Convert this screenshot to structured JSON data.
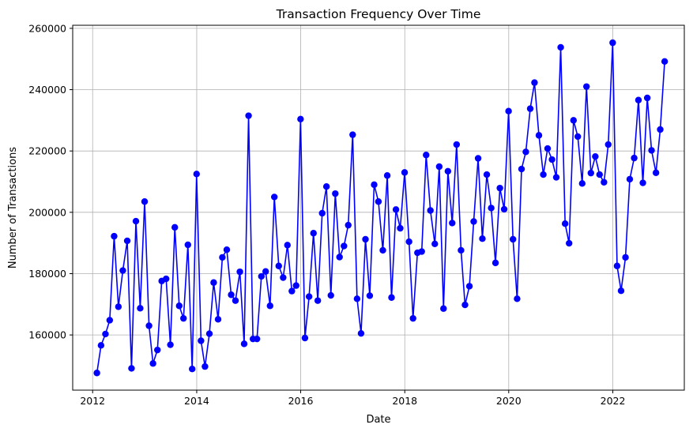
{
  "chart_data": {
    "type": "line",
    "title": "Transaction Frequency Over Time",
    "xlabel": "Date",
    "ylabel": "Number of Transactions",
    "x_ticks": [
      "2012",
      "2014",
      "2016",
      "2018",
      "2020",
      "2022"
    ],
    "y_ticks": [
      "160000",
      "180000",
      "200000",
      "220000",
      "240000",
      "260000"
    ],
    "xlim": [
      "2011-08-14",
      "2023-05-18"
    ],
    "ylim": [
      142000,
      261000
    ],
    "grid": true,
    "colors": {
      "line": "#0000ff",
      "grid": "#b0b0b0"
    },
    "marker": "circle",
    "series": [
      {
        "dates": [
          "2012-01-31",
          "2012-02-29",
          "2012-03-31",
          "2012-04-30",
          "2012-05-31",
          "2012-06-30",
          "2012-07-31",
          "2012-08-31",
          "2012-09-30",
          "2012-10-31",
          "2012-11-30",
          "2012-12-31",
          "2013-01-31",
          "2013-02-28",
          "2013-03-31",
          "2013-04-30",
          "2013-05-31",
          "2013-06-30",
          "2013-07-31",
          "2013-08-31",
          "2013-09-30",
          "2013-10-31",
          "2013-11-30",
          "2013-12-31",
          "2014-01-31",
          "2014-02-28",
          "2014-03-31",
          "2014-04-30",
          "2014-05-31",
          "2014-06-30",
          "2014-07-31",
          "2014-08-31",
          "2014-09-30",
          "2014-10-31",
          "2014-11-30",
          "2014-12-31",
          "2015-01-31",
          "2015-02-28",
          "2015-03-31",
          "2015-04-30",
          "2015-05-31",
          "2015-06-30",
          "2015-07-31",
          "2015-08-31",
          "2015-09-30",
          "2015-10-31",
          "2015-11-30",
          "2015-12-31",
          "2016-01-31",
          "2016-02-29",
          "2016-03-31",
          "2016-04-30",
          "2016-05-31",
          "2016-06-30",
          "2016-07-31",
          "2016-08-31",
          "2016-09-30",
          "2016-10-31",
          "2016-11-30",
          "2016-12-31",
          "2017-01-31",
          "2017-02-28",
          "2017-03-31",
          "2017-04-30",
          "2017-05-31",
          "2017-06-30",
          "2017-07-31",
          "2017-08-31",
          "2017-09-30",
          "2017-10-31",
          "2017-11-30",
          "2017-12-31",
          "2018-01-31",
          "2018-02-28",
          "2018-03-31",
          "2018-04-30",
          "2018-05-31",
          "2018-06-30",
          "2018-07-31",
          "2018-08-31",
          "2018-09-30",
          "2018-10-31",
          "2018-11-30",
          "2018-12-31",
          "2019-01-31",
          "2019-02-28",
          "2019-03-31",
          "2019-04-30",
          "2019-05-31",
          "2019-06-30",
          "2019-07-31",
          "2019-08-31",
          "2019-09-30",
          "2019-10-31",
          "2019-11-30",
          "2019-12-31",
          "2020-01-31",
          "2020-02-29",
          "2020-03-31",
          "2020-04-30",
          "2020-05-31",
          "2020-06-30",
          "2020-07-31",
          "2020-08-31",
          "2020-09-30",
          "2020-10-31",
          "2020-11-30",
          "2020-12-31",
          "2021-01-31",
          "2021-02-28",
          "2021-03-31",
          "2021-04-30",
          "2021-05-31",
          "2021-06-30",
          "2021-07-31",
          "2021-08-31",
          "2021-09-30",
          "2021-10-31",
          "2021-11-30",
          "2021-12-31",
          "2022-01-31",
          "2022-02-28",
          "2022-03-31",
          "2022-04-30",
          "2022-05-31",
          "2022-06-30",
          "2022-07-31",
          "2022-08-31",
          "2022-09-30",
          "2022-10-31",
          "2022-11-30",
          "2022-12-31"
        ],
        "values": [
          147600,
          156600,
          160300,
          164800,
          192200,
          169200,
          181000,
          190700,
          149100,
          197100,
          168700,
          203500,
          163000,
          150700,
          155100,
          177600,
          178300,
          156800,
          195100,
          169500,
          165400,
          189400,
          148900,
          212500,
          158100,
          149700,
          160400,
          177100,
          165100,
          185300,
          187800,
          173100,
          171200,
          180600,
          157100,
          231500,
          158700,
          158700,
          179100,
          180700,
          169500,
          205000,
          182500,
          178700,
          189300,
          174300,
          176100,
          230400,
          159000,
          172500,
          193200,
          171200,
          199700,
          208400,
          172900,
          206100,
          185400,
          189000,
          195800,
          225300,
          171800,
          160500,
          191200,
          172800,
          209000,
          203500,
          187600,
          212000,
          172200,
          200900,
          194800,
          213000,
          190400,
          165400,
          186800,
          187200,
          218700,
          200600,
          189700,
          214900,
          168600,
          213400,
          196500,
          222100,
          187600,
          169800,
          175900,
          197000,
          217600,
          191400,
          212300,
          201400,
          183500,
          207900,
          201000,
          233000,
          191200,
          171800,
          214100,
          219700,
          233800,
          242300,
          225100,
          212300,
          220800,
          217200,
          211400,
          253800,
          196300,
          189900,
          230000,
          224700,
          209400,
          241000,
          212800,
          218200,
          212300,
          209800,
          222100,
          255300,
          182500,
          174400,
          185300,
          210800,
          217700,
          236600,
          209600,
          237300,
          220200,
          212900,
          227000,
          249200
        ]
      }
    ]
  }
}
